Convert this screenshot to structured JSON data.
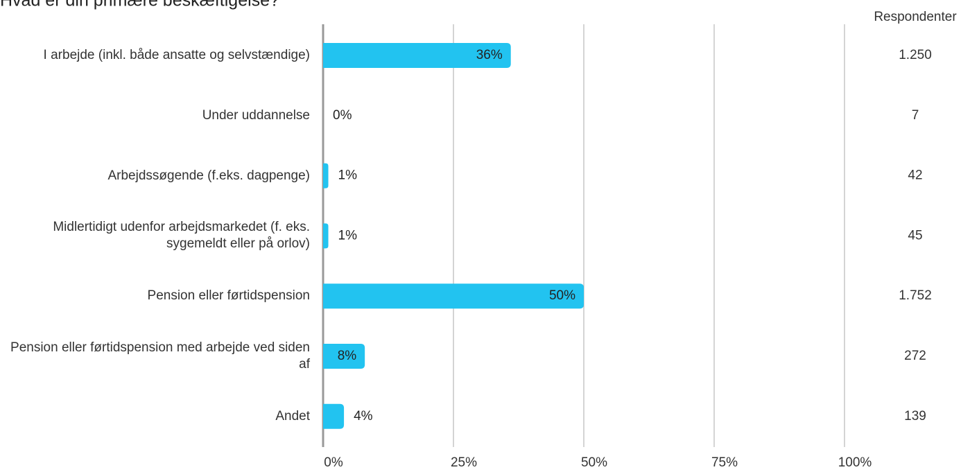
{
  "chart_data": {
    "type": "bar",
    "orientation": "horizontal",
    "title": "Hvad er din primære beskæftigelse?",
    "categories": [
      "I arbejde (inkl. både ansatte og selvstændige)",
      "Under uddannelse",
      "Arbejdssøgende (f.eks. dagpenge)",
      "Midlertidigt udenfor arbejdsmarkedet (f. eks. sygemeldt eller på orlov)",
      "Pension eller førtidspension",
      "Pension eller førtidspension med arbejde ved siden af",
      "Andet"
    ],
    "values": [
      36,
      0,
      1,
      1,
      50,
      8,
      4
    ],
    "value_labels": [
      "36%",
      "0%",
      "1%",
      "1%",
      "50%",
      "8%",
      "4%"
    ],
    "color": "#22c3f0",
    "xlim": [
      0,
      100
    ],
    "xticks": [
      {
        "value": 0,
        "label": "0%"
      },
      {
        "value": 25,
        "label": "25%"
      },
      {
        "value": 50,
        "label": "50%"
      },
      {
        "value": 75,
        "label": "75%"
      },
      {
        "value": 100,
        "label": "100%"
      }
    ],
    "grid": true,
    "respondents": {
      "title": "Respondenter",
      "values": [
        1250,
        7,
        42,
        45,
        1752,
        272,
        139
      ],
      "value_labels": [
        "1.250",
        "7",
        "42",
        "45",
        "1.752",
        "272",
        "139"
      ]
    }
  }
}
